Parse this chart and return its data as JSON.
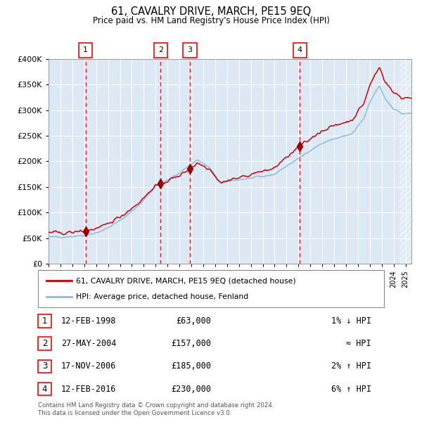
{
  "title": "61, CAVALRY DRIVE, MARCH, PE15 9EQ",
  "subtitle": "Price paid vs. HM Land Registry's House Price Index (HPI)",
  "legend_line1": "61, CAVALRY DRIVE, MARCH, PE15 9EQ (detached house)",
  "legend_line2": "HPI: Average price, detached house, Fenland",
  "footer": "Contains HM Land Registry data © Crown copyright and database right 2024.\nThis data is licensed under the Open Government Licence v3.0.",
  "sale_years": [
    1998.12,
    2004.41,
    2006.88,
    2016.12
  ],
  "sale_prices": [
    63000,
    157000,
    185000,
    230000
  ],
  "sale_labels": [
    "1",
    "2",
    "3",
    "4"
  ],
  "sale_table": [
    [
      "1",
      "12-FEB-1998",
      "£63,000",
      "1% ↓ HPI"
    ],
    [
      "2",
      "27-MAY-2004",
      "£157,000",
      "≈ HPI"
    ],
    [
      "3",
      "17-NOV-2006",
      "£185,000",
      "2% ↑ HPI"
    ],
    [
      "4",
      "12-FEB-2016",
      "£230,000",
      "6% ↑ HPI"
    ]
  ],
  "hpi_color": "#8bbcdb",
  "price_color": "#cc0000",
  "bg_color": "#dce9f5",
  "dashed_color": "#cc0000",
  "marker_color": "#990000",
  "ylim": [
    0,
    400000
  ],
  "yticks": [
    0,
    50000,
    100000,
    150000,
    200000,
    250000,
    300000,
    350000,
    400000
  ],
  "xlim_start": 1995.0,
  "xlim_end": 2025.5,
  "anchors_year_hpi": [
    1995.0,
    1996.0,
    1997.0,
    1998.2,
    1999.5,
    2001.0,
    2002.5,
    2004.0,
    2005.0,
    2006.0,
    2007.5,
    2008.5,
    2009.5,
    2010.5,
    2012.0,
    2013.0,
    2014.0,
    2015.0,
    2016.0,
    2017.0,
    2018.0,
    2019.0,
    2020.5,
    2021.5,
    2022.0,
    2022.8,
    2023.3,
    2024.0,
    2024.7,
    2025.5
  ],
  "anchors_price_hpi": [
    52000,
    52500,
    53500,
    56000,
    64000,
    84000,
    112000,
    152000,
    163000,
    178000,
    203000,
    188000,
    157000,
    163000,
    167000,
    170000,
    175000,
    191000,
    205000,
    222000,
    235000,
    244000,
    253000,
    283000,
    315000,
    348000,
    322000,
    303000,
    293000,
    293000
  ],
  "hatch_start": 2024.5
}
